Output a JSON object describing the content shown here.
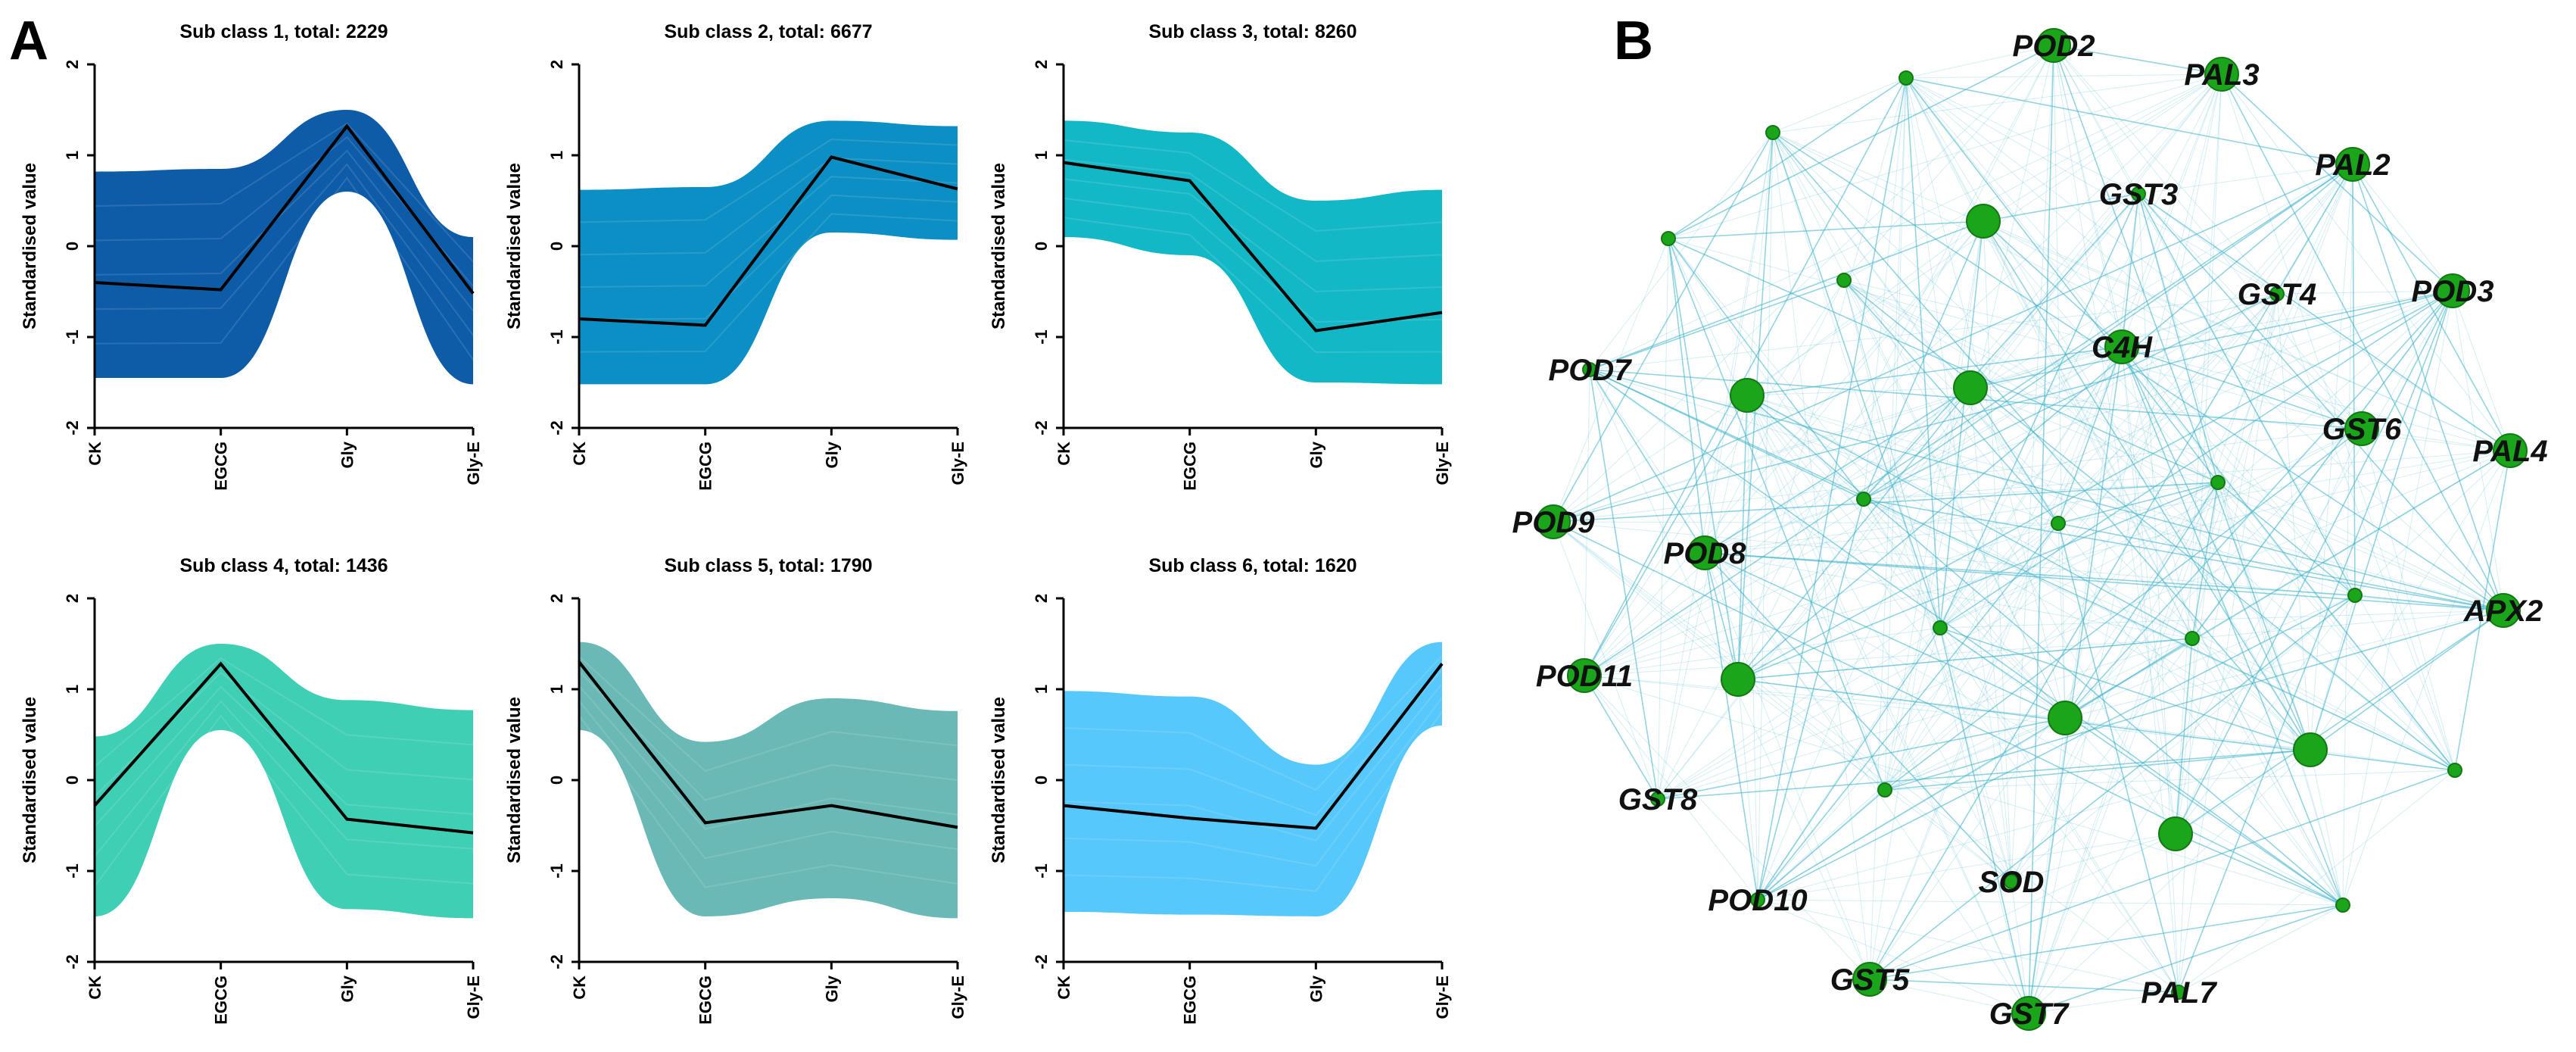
{
  "panel_a_label": "A",
  "panel_b_label": "B",
  "chart_data": [
    {
      "type": "line",
      "panel": "A",
      "title": "Sub class 1, total: 2229",
      "categories": [
        "CK",
        "EGCG",
        "Gly",
        "Gly-E"
      ],
      "ylabel": "Standardised value",
      "ylim": [
        -2,
        2
      ],
      "yticks": [
        "-2",
        "-1",
        "0",
        "1",
        "2"
      ],
      "color": "#0e5ca8",
      "series": [
        {
          "name": "centroid",
          "values": [
            -0.4,
            -0.48,
            1.32,
            -0.52
          ]
        }
      ],
      "band_upper": [
        0.82,
        0.85,
        1.5,
        0.1
      ],
      "band_lower": [
        -1.45,
        -1.45,
        0.6,
        -1.52
      ]
    },
    {
      "type": "line",
      "panel": "A",
      "title": "Sub class 2, total: 6677",
      "categories": [
        "CK",
        "EGCG",
        "Gly",
        "Gly-E"
      ],
      "ylabel": "Standardised value",
      "ylim": [
        -2,
        2
      ],
      "yticks": [
        "-2",
        "-1",
        "0",
        "1",
        "2"
      ],
      "color": "#0b8fc4",
      "series": [
        {
          "name": "centroid",
          "values": [
            -0.8,
            -0.87,
            0.98,
            0.63
          ]
        }
      ],
      "band_upper": [
        0.62,
        0.65,
        1.38,
        1.32
      ],
      "band_lower": [
        -1.52,
        -1.52,
        0.15,
        0.07
      ]
    },
    {
      "type": "line",
      "panel": "A",
      "title": "Sub class 3, total: 8260",
      "categories": [
        "CK",
        "EGCG",
        "Gly",
        "Gly-E"
      ],
      "ylabel": "Standardised value",
      "ylim": [
        -2,
        2
      ],
      "yticks": [
        "-2",
        "-1",
        "0",
        "1",
        "2"
      ],
      "color": "#13b8c6",
      "series": [
        {
          "name": "centroid",
          "values": [
            0.92,
            0.72,
            -0.93,
            -0.73
          ]
        }
      ],
      "band_upper": [
        1.38,
        1.25,
        0.5,
        0.62
      ],
      "band_lower": [
        0.1,
        -0.1,
        -1.5,
        -1.52
      ]
    },
    {
      "type": "line",
      "panel": "A",
      "title": "Sub class 4, total: 1436",
      "categories": [
        "CK",
        "EGCG",
        "Gly",
        "Gly-E"
      ],
      "ylabel": "Standardised value",
      "ylim": [
        -2,
        2
      ],
      "yticks": [
        "-2",
        "-1",
        "0",
        "1",
        "2"
      ],
      "color": "#3fcfb5",
      "series": [
        {
          "name": "centroid",
          "values": [
            -0.28,
            1.28,
            -0.43,
            -0.58
          ]
        }
      ],
      "band_upper": [
        0.48,
        1.5,
        0.88,
        0.77
      ],
      "band_lower": [
        -1.5,
        0.55,
        -1.42,
        -1.52
      ]
    },
    {
      "type": "line",
      "panel": "A",
      "title": "Sub class 5, total: 1790",
      "categories": [
        "CK",
        "EGCG",
        "Gly",
        "Gly-E"
      ],
      "ylabel": "Standardised value",
      "ylim": [
        -2,
        2
      ],
      "yticks": [
        "-2",
        "-1",
        "0",
        "1",
        "2"
      ],
      "color": "#6bb9b6",
      "series": [
        {
          "name": "centroid",
          "values": [
            1.3,
            -0.47,
            -0.28,
            -0.52
          ]
        }
      ],
      "band_upper": [
        1.52,
        0.42,
        0.9,
        0.76
      ],
      "band_lower": [
        0.55,
        -1.5,
        -1.3,
        -1.52
      ]
    },
    {
      "type": "line",
      "panel": "A",
      "title": "Sub class 6, total: 1620",
      "categories": [
        "CK",
        "EGCG",
        "Gly",
        "Gly-E"
      ],
      "ylabel": "Standardised value",
      "ylim": [
        -2,
        2
      ],
      "yticks": [
        "-2",
        "-1",
        "0",
        "1",
        "2"
      ],
      "color": "#57c8fb",
      "series": [
        {
          "name": "centroid",
          "values": [
            -0.28,
            -0.42,
            -0.53,
            1.28
          ]
        }
      ],
      "band_upper": [
        0.98,
        0.92,
        0.17,
        1.52
      ],
      "band_lower": [
        -1.45,
        -1.48,
        -1.5,
        0.6
      ]
    }
  ],
  "network": {
    "title": "B",
    "node_color": "#1aa51a",
    "edge_color": "#3ab0c8",
    "nodes": [
      {
        "label": "POD2",
        "size": "large"
      },
      {
        "label": "PAL3",
        "size": "large"
      },
      {
        "label": "PAL2",
        "size": "large"
      },
      {
        "label": "GST3",
        "size": "small"
      },
      {
        "label": "GST4",
        "size": "small"
      },
      {
        "label": "POD3",
        "size": "large"
      },
      {
        "label": "C4H",
        "size": "large"
      },
      {
        "label": "GST6",
        "size": "large"
      },
      {
        "label": "PAL4",
        "size": "large"
      },
      {
        "label": "POD7",
        "size": "small"
      },
      {
        "label": "POD9",
        "size": "large"
      },
      {
        "label": "POD8",
        "size": "large"
      },
      {
        "label": "APX2",
        "size": "large"
      },
      {
        "label": "POD11",
        "size": "large"
      },
      {
        "label": "GST8",
        "size": "small"
      },
      {
        "label": "SOD",
        "size": "small"
      },
      {
        "label": "POD10",
        "size": "small"
      },
      {
        "label": "GST5",
        "size": "large"
      },
      {
        "label": "GST7",
        "size": "large"
      },
      {
        "label": "PAL7",
        "size": "small"
      },
      {
        "label": "",
        "size": "small"
      },
      {
        "label": "",
        "size": "small"
      },
      {
        "label": "",
        "size": "large"
      },
      {
        "label": "",
        "size": "small"
      },
      {
        "label": "",
        "size": "small"
      },
      {
        "label": "",
        "size": "large"
      },
      {
        "label": "",
        "size": "large"
      },
      {
        "label": "",
        "size": "small"
      },
      {
        "label": "",
        "size": "small"
      },
      {
        "label": "",
        "size": "small"
      },
      {
        "label": "",
        "size": "small"
      },
      {
        "label": "",
        "size": "large"
      },
      {
        "label": "",
        "size": "large"
      },
      {
        "label": "",
        "size": "small"
      },
      {
        "label": "",
        "size": "small"
      },
      {
        "label": "",
        "size": "large"
      },
      {
        "label": "",
        "size": "large"
      },
      {
        "label": "",
        "size": "small"
      },
      {
        "label": "",
        "size": "small"
      },
      {
        "label": "",
        "size": "small"
      }
    ]
  }
}
